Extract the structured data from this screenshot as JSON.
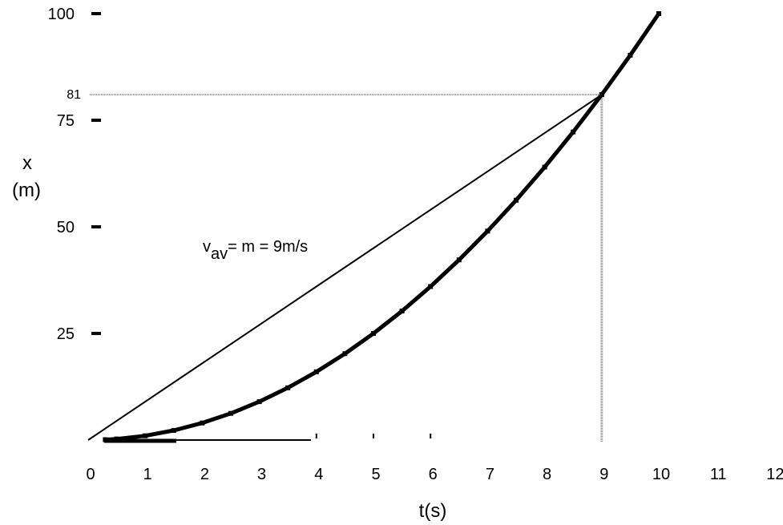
{
  "chart_data": {
    "type": "line",
    "title": "",
    "xlabel": "t(s)",
    "ylabel": [
      "x",
      "(m)"
    ],
    "xlim": [
      0,
      12
    ],
    "ylim": [
      0,
      100
    ],
    "x_ticks": [
      "0",
      "1",
      "2",
      "3",
      "4",
      "5",
      "6",
      "7",
      "8",
      "9",
      "10",
      "11",
      "12"
    ],
    "y_ticks": [
      "25",
      "50",
      "75",
      "100"
    ],
    "series": [
      {
        "style": "thick curve",
        "x": [
          0.3,
          0.5,
          1.0,
          1.5,
          2.0,
          2.5,
          3.0,
          3.5,
          4.0,
          4.5,
          5.0,
          5.5,
          6.0,
          6.5,
          7.0,
          7.5,
          8.0,
          8.5,
          9.0,
          9.5,
          10.0
        ],
        "y": [
          0.09,
          0.25,
          1,
          2.25,
          4,
          6.25,
          9,
          12.25,
          16,
          20.25,
          25,
          30.25,
          36,
          42.25,
          49,
          56.25,
          64,
          72.25,
          81,
          90.25,
          100
        ]
      },
      {
        "style": "thin line",
        "x": [
          0,
          9
        ],
        "y": [
          0,
          81
        ]
      }
    ],
    "reference_point": {
      "x": 9,
      "y": 81,
      "label": "81"
    },
    "annotation": {
      "prefix": "v",
      "subscript": "av",
      "suffix": "= m = 9m/s"
    },
    "colors": {
      "curve": "#000000",
      "secant": "#000000",
      "reference": "#888888"
    }
  }
}
